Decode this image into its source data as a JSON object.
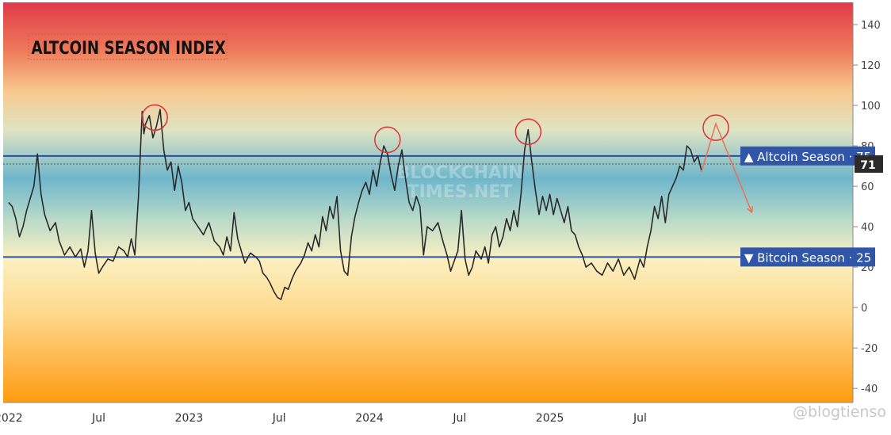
{
  "chart_data": {
    "type": "line",
    "title": "ALTCOIN SEASON INDEX",
    "ylim": [
      -47,
      151
    ],
    "y_ticks": [
      140,
      120,
      100,
      80,
      60,
      40,
      20,
      0,
      -20,
      -40
    ],
    "x_ticks": [
      {
        "label": "2022",
        "t": 2022.0
      },
      {
        "label": "Jul",
        "t": 2022.5
      },
      {
        "label": "2023",
        "t": 2023.0
      },
      {
        "label": "Jul",
        "t": 2023.5
      },
      {
        "label": "2024",
        "t": 2024.0
      },
      {
        "label": "Jul",
        "t": 2024.5
      },
      {
        "label": "2025",
        "t": 2025.0
      },
      {
        "label": "Jul",
        "t": 2025.5
      }
    ],
    "series": [
      {
        "values": [
          [
            2022.0,
            52
          ],
          [
            2022.02,
            50
          ],
          [
            2022.04,
            44
          ],
          [
            2022.06,
            35
          ],
          [
            2022.08,
            40
          ],
          [
            2022.1,
            48
          ],
          [
            2022.14,
            60
          ],
          [
            2022.16,
            76
          ],
          [
            2022.18,
            56
          ],
          [
            2022.2,
            46
          ],
          [
            2022.23,
            38
          ],
          [
            2022.26,
            42
          ],
          [
            2022.28,
            33
          ],
          [
            2022.31,
            26
          ],
          [
            2022.34,
            30
          ],
          [
            2022.37,
            25
          ],
          [
            2022.4,
            29
          ],
          [
            2022.42,
            20
          ],
          [
            2022.44,
            28
          ],
          [
            2022.46,
            48
          ],
          [
            2022.48,
            27
          ],
          [
            2022.5,
            17
          ],
          [
            2022.52,
            20
          ],
          [
            2022.55,
            24
          ],
          [
            2022.58,
            23
          ],
          [
            2022.61,
            30
          ],
          [
            2022.64,
            28
          ],
          [
            2022.66,
            25
          ],
          [
            2022.68,
            34
          ],
          [
            2022.7,
            26
          ],
          [
            2022.72,
            55
          ],
          [
            2022.74,
            97
          ],
          [
            2022.75,
            86
          ],
          [
            2022.76,
            91
          ],
          [
            2022.78,
            95
          ],
          [
            2022.8,
            84
          ],
          [
            2022.82,
            90
          ],
          [
            2022.84,
            98
          ],
          [
            2022.86,
            78
          ],
          [
            2022.88,
            68
          ],
          [
            2022.9,
            72
          ],
          [
            2022.92,
            58
          ],
          [
            2022.94,
            70
          ],
          [
            2022.96,
            62
          ],
          [
            2022.98,
            48
          ],
          [
            2023.0,
            52
          ],
          [
            2023.02,
            44
          ],
          [
            2023.05,
            40
          ],
          [
            2023.08,
            36
          ],
          [
            2023.11,
            42
          ],
          [
            2023.14,
            33
          ],
          [
            2023.17,
            30
          ],
          [
            2023.19,
            26
          ],
          [
            2023.21,
            35
          ],
          [
            2023.23,
            28
          ],
          [
            2023.25,
            47
          ],
          [
            2023.27,
            34
          ],
          [
            2023.29,
            28
          ],
          [
            2023.31,
            22
          ],
          [
            2023.34,
            27
          ],
          [
            2023.37,
            25
          ],
          [
            2023.39,
            23
          ],
          [
            2023.41,
            17
          ],
          [
            2023.43,
            15
          ],
          [
            2023.45,
            12
          ],
          [
            2023.47,
            8
          ],
          [
            2023.49,
            5
          ],
          [
            2023.51,
            4
          ],
          [
            2023.53,
            10
          ],
          [
            2023.55,
            9
          ],
          [
            2023.57,
            14
          ],
          [
            2023.59,
            18
          ],
          [
            2023.62,
            22
          ],
          [
            2023.64,
            26
          ],
          [
            2023.66,
            32
          ],
          [
            2023.68,
            28
          ],
          [
            2023.7,
            36
          ],
          [
            2023.72,
            30
          ],
          [
            2023.74,
            45
          ],
          [
            2023.76,
            38
          ],
          [
            2023.78,
            50
          ],
          [
            2023.8,
            44
          ],
          [
            2023.82,
            55
          ],
          [
            2023.84,
            28
          ],
          [
            2023.86,
            18
          ],
          [
            2023.88,
            16
          ],
          [
            2023.9,
            35
          ],
          [
            2023.92,
            45
          ],
          [
            2023.94,
            52
          ],
          [
            2023.96,
            58
          ],
          [
            2023.98,
            62
          ],
          [
            2024.0,
            56
          ],
          [
            2024.02,
            68
          ],
          [
            2024.04,
            60
          ],
          [
            2024.06,
            72
          ],
          [
            2024.08,
            80
          ],
          [
            2024.1,
            76
          ],
          [
            2024.12,
            66
          ],
          [
            2024.14,
            58
          ],
          [
            2024.16,
            70
          ],
          [
            2024.18,
            78
          ],
          [
            2024.2,
            64
          ],
          [
            2024.22,
            52
          ],
          [
            2024.24,
            48
          ],
          [
            2024.26,
            55
          ],
          [
            2024.28,
            50
          ],
          [
            2024.3,
            26
          ],
          [
            2024.32,
            40
          ],
          [
            2024.35,
            38
          ],
          [
            2024.38,
            42
          ],
          [
            2024.41,
            32
          ],
          [
            2024.43,
            26
          ],
          [
            2024.45,
            18
          ],
          [
            2024.47,
            23
          ],
          [
            2024.49,
            28
          ],
          [
            2024.51,
            48
          ],
          [
            2024.53,
            24
          ],
          [
            2024.55,
            16
          ],
          [
            2024.57,
            20
          ],
          [
            2024.59,
            28
          ],
          [
            2024.62,
            24
          ],
          [
            2024.64,
            30
          ],
          [
            2024.66,
            22
          ],
          [
            2024.68,
            36
          ],
          [
            2024.7,
            40
          ],
          [
            2024.72,
            30
          ],
          [
            2024.74,
            35
          ],
          [
            2024.76,
            44
          ],
          [
            2024.78,
            38
          ],
          [
            2024.8,
            48
          ],
          [
            2024.82,
            40
          ],
          [
            2024.84,
            56
          ],
          [
            2024.86,
            78
          ],
          [
            2024.88,
            88
          ],
          [
            2024.9,
            72
          ],
          [
            2024.92,
            58
          ],
          [
            2024.94,
            46
          ],
          [
            2024.96,
            55
          ],
          [
            2024.98,
            48
          ],
          [
            2025.0,
            56
          ],
          [
            2025.02,
            46
          ],
          [
            2025.04,
            54
          ],
          [
            2025.06,
            48
          ],
          [
            2025.08,
            42
          ],
          [
            2025.1,
            50
          ],
          [
            2025.12,
            38
          ],
          [
            2025.14,
            36
          ],
          [
            2025.16,
            30
          ],
          [
            2025.18,
            26
          ],
          [
            2025.2,
            20
          ],
          [
            2025.23,
            22
          ],
          [
            2025.26,
            18
          ],
          [
            2025.29,
            16
          ],
          [
            2025.32,
            22
          ],
          [
            2025.35,
            18
          ],
          [
            2025.38,
            24
          ],
          [
            2025.41,
            16
          ],
          [
            2025.44,
            20
          ],
          [
            2025.47,
            14
          ],
          [
            2025.5,
            24
          ],
          [
            2025.52,
            20
          ],
          [
            2025.54,
            30
          ],
          [
            2025.56,
            38
          ],
          [
            2025.58,
            50
          ],
          [
            2025.6,
            44
          ],
          [
            2025.62,
            55
          ],
          [
            2025.64,
            42
          ],
          [
            2025.66,
            56
          ],
          [
            2025.68,
            60
          ],
          [
            2025.7,
            64
          ],
          [
            2025.72,
            70
          ],
          [
            2025.74,
            68
          ],
          [
            2025.76,
            80
          ],
          [
            2025.78,
            78
          ],
          [
            2025.8,
            72
          ],
          [
            2025.82,
            75
          ],
          [
            2025.84,
            68
          ]
        ]
      }
    ],
    "reference_lines": [
      {
        "label": "▲ Altcoin Season · 75",
        "y": 75,
        "color": "#2a4fa0"
      },
      {
        "label": "▼ Bitcoin Season · 25",
        "y": 25,
        "color": "#2a4fa0"
      }
    ],
    "current_value_label": {
      "label": "71",
      "y": 71
    },
    "annotations": {
      "circles_at": [
        [
          2022.81,
          94
        ],
        [
          2024.1,
          83
        ],
        [
          2024.88,
          87
        ],
        [
          2025.92,
          89
        ]
      ],
      "projection": [
        [
          2025.84,
          67
        ],
        [
          2025.92,
          91
        ],
        [
          2026.12,
          47
        ]
      ],
      "projection_color": "#f07050",
      "circle_color": "#e03030"
    },
    "watermark": "BLOCKCHAIN\nTIMES.NET",
    "credit": "@blogtienso",
    "grid": false,
    "legend": "none"
  }
}
